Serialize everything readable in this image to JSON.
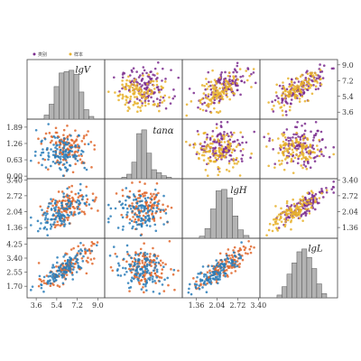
{
  "chart_data": {
    "type": "scatter-matrix",
    "title": "",
    "grid": false,
    "variables": [
      {
        "label": "lgV",
        "range": [
          2.8,
          9.6
        ],
        "ticks": [
          3.6,
          5.4,
          7.2,
          9.0
        ],
        "tick_labels": [
          "3.6",
          "5.4",
          "7.2",
          "9.0"
        ]
      },
      {
        "label": "tanα",
        "range": [
          -0.1,
          2.2
        ],
        "ticks": [
          0.0,
          0.63,
          1.26,
          1.89
        ],
        "tick_labels": [
          "0.00",
          "0.63",
          "1.26",
          "1.89"
        ]
      },
      {
        "label": "lgH",
        "range": [
          0.9,
          3.45
        ],
        "ticks": [
          1.36,
          2.04,
          2.72,
          3.4
        ],
        "tick_labels": [
          "1.36",
          "2.04",
          "2.72",
          "3.40"
        ]
      },
      {
        "label": "lgL",
        "range": [
          1.0,
          4.6
        ],
        "ticks": [
          1.7,
          2.55,
          3.4,
          4.25
        ],
        "tick_labels": [
          "1.70",
          "2.55",
          "3.40",
          "4.25"
        ]
      }
    ],
    "upper_legend": {
      "placement": "top-left",
      "entries": [
        {
          "name": "类别",
          "color": "#7b2d8e"
        },
        {
          "name": "样本",
          "color": "#e8b22c"
        }
      ]
    },
    "upper_series_colors": [
      "#7b2d8e",
      "#e8b22c"
    ],
    "lower_series_colors": [
      "#e0662a",
      "#2a7db8"
    ],
    "histogram_color": "#b3b3b3",
    "histograms": [
      {
        "variable": "lgV",
        "bins": [
          3.2,
          3.85,
          4.5,
          5.15,
          5.8,
          6.45,
          7.1,
          7.75,
          8.4,
          9.05
        ],
        "counts": [
          6,
          22,
          48,
          68,
          70,
          72,
          66,
          40,
          14,
          4
        ]
      },
      {
        "variable": "tanα",
        "bins": [
          0.1,
          0.25,
          0.4,
          0.55,
          0.7,
          0.85,
          1.0,
          1.15,
          1.3,
          1.45
        ],
        "counts": [
          2,
          6,
          22,
          60,
          65,
          34,
          12,
          8,
          4,
          2
        ]
      },
      {
        "variable": "lgH",
        "bins": [
          1.0,
          1.25,
          1.5,
          1.75,
          2.0,
          2.25,
          2.5,
          2.75,
          3.0
        ],
        "counts": [
          3,
          14,
          42,
          68,
          70,
          58,
          32,
          12,
          4
        ]
      },
      {
        "variable": "lgL",
        "bins": [
          1.3,
          1.6,
          1.9,
          2.2,
          2.5,
          2.8,
          3.1,
          3.4,
          3.7,
          4.0
        ],
        "counts": [
          4,
          16,
          34,
          50,
          66,
          70,
          58,
          42,
          20,
          6
        ]
      }
    ],
    "correlations": {
      "0-1": -0.05,
      "0-2": 0.55,
      "0-3": 0.75,
      "1-2": -0.05,
      "1-3": -0.1,
      "2-3": 0.8
    },
    "points_per_series": 120
  }
}
